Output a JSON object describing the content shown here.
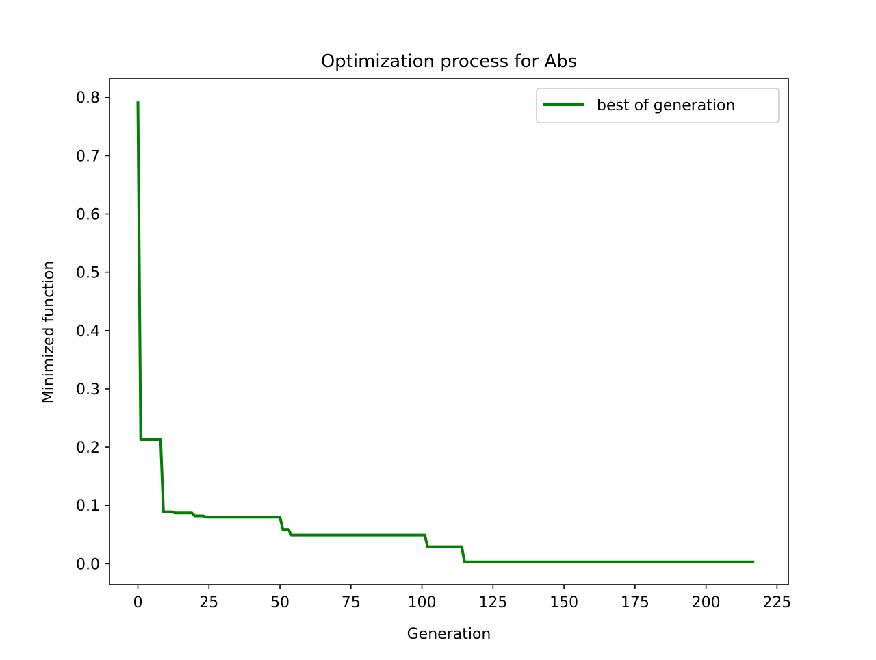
{
  "chart_data": {
    "type": "line",
    "title": "Optimization process for Abs",
    "xlabel": "Generation",
    "ylabel": "Minimized function",
    "xlim": [
      -10,
      229
    ],
    "ylim": [
      -0.036,
      0.832
    ],
    "xticks": [
      0,
      25,
      50,
      75,
      100,
      125,
      150,
      175,
      200,
      225
    ],
    "yticks": [
      0.0,
      0.1,
      0.2,
      0.3,
      0.4,
      0.5,
      0.6,
      0.7,
      0.8
    ],
    "xtick_labels": [
      "0",
      "25",
      "50",
      "75",
      "100",
      "125",
      "150",
      "175",
      "200",
      "225"
    ],
    "ytick_labels": [
      "0.0",
      "0.1",
      "0.2",
      "0.3",
      "0.4",
      "0.5",
      "0.6",
      "0.7",
      "0.8"
    ],
    "grid": false,
    "legend": "top-right",
    "series": [
      {
        "name": "best of generation",
        "color": "#008000",
        "x": [
          0,
          1,
          2,
          3,
          4,
          5,
          6,
          7,
          8,
          9,
          10,
          11,
          12,
          13,
          14,
          15,
          16,
          17,
          18,
          19,
          20,
          21,
          22,
          23,
          24,
          25,
          26,
          27,
          28,
          29,
          30,
          31,
          32,
          33,
          34,
          35,
          36,
          37,
          38,
          39,
          40,
          41,
          42,
          43,
          44,
          45,
          46,
          47,
          48,
          49,
          50,
          51,
          52,
          53,
          54,
          55,
          56,
          57,
          58,
          59,
          60,
          61,
          62,
          63,
          64,
          65,
          66,
          67,
          68,
          69,
          70,
          71,
          72,
          73,
          74,
          75,
          76,
          77,
          78,
          79,
          80,
          81,
          82,
          83,
          84,
          85,
          86,
          87,
          88,
          89,
          90,
          91,
          92,
          93,
          94,
          95,
          96,
          97,
          98,
          99,
          100,
          101,
          102,
          103,
          104,
          105,
          106,
          107,
          108,
          109,
          110,
          111,
          112,
          113,
          114,
          115,
          116,
          117,
          118,
          119,
          120,
          121,
          122,
          123,
          124,
          125,
          126,
          127,
          128,
          129,
          130,
          131,
          132,
          133,
          134,
          135,
          136,
          137,
          138,
          139,
          140,
          141,
          142,
          143,
          144,
          145,
          146,
          147,
          148,
          149,
          150,
          151,
          152,
          153,
          154,
          155,
          156,
          157,
          158,
          159,
          160,
          161,
          162,
          163,
          164,
          165,
          166,
          167,
          168,
          169,
          170,
          171,
          172,
          173,
          174,
          175,
          176,
          177,
          178,
          179,
          180,
          181,
          182,
          183,
          184,
          185,
          186,
          187,
          188,
          189,
          190,
          191,
          192,
          193,
          194,
          195,
          196,
          197,
          198,
          199,
          200,
          201,
          202,
          203,
          204,
          205,
          206,
          207,
          208,
          209,
          210,
          211,
          212,
          213,
          214,
          215,
          216,
          217
        ],
        "y": [
          0.793,
          0.213,
          0.213,
          0.213,
          0.213,
          0.213,
          0.213,
          0.213,
          0.213,
          0.089,
          0.089,
          0.089,
          0.089,
          0.087,
          0.087,
          0.087,
          0.087,
          0.087,
          0.087,
          0.087,
          0.082,
          0.082,
          0.082,
          0.082,
          0.08,
          0.08,
          0.08,
          0.08,
          0.08,
          0.08,
          0.08,
          0.08,
          0.08,
          0.08,
          0.08,
          0.08,
          0.08,
          0.08,
          0.08,
          0.08,
          0.08,
          0.08,
          0.08,
          0.08,
          0.08,
          0.08,
          0.08,
          0.08,
          0.08,
          0.08,
          0.08,
          0.059,
          0.059,
          0.059,
          0.049,
          0.049,
          0.049,
          0.049,
          0.049,
          0.049,
          0.049,
          0.049,
          0.049,
          0.049,
          0.049,
          0.049,
          0.049,
          0.049,
          0.049,
          0.049,
          0.049,
          0.049,
          0.049,
          0.049,
          0.049,
          0.049,
          0.049,
          0.049,
          0.049,
          0.049,
          0.049,
          0.049,
          0.049,
          0.049,
          0.049,
          0.049,
          0.049,
          0.049,
          0.049,
          0.049,
          0.049,
          0.049,
          0.049,
          0.049,
          0.049,
          0.049,
          0.049,
          0.049,
          0.049,
          0.049,
          0.049,
          0.049,
          0.029,
          0.029,
          0.029,
          0.029,
          0.029,
          0.029,
          0.029,
          0.029,
          0.029,
          0.029,
          0.029,
          0.029,
          0.029,
          0.003,
          0.003,
          0.003,
          0.003,
          0.003,
          0.003,
          0.003,
          0.003,
          0.003,
          0.003,
          0.003,
          0.003,
          0.003,
          0.003,
          0.003,
          0.003,
          0.003,
          0.003,
          0.003,
          0.003,
          0.003,
          0.003,
          0.003,
          0.003,
          0.003,
          0.003,
          0.003,
          0.003,
          0.003,
          0.003,
          0.003,
          0.003,
          0.003,
          0.003,
          0.003,
          0.003,
          0.003,
          0.003,
          0.003,
          0.003,
          0.003,
          0.003,
          0.003,
          0.003,
          0.003,
          0.003,
          0.003,
          0.003,
          0.003,
          0.003,
          0.003,
          0.003,
          0.003,
          0.003,
          0.003,
          0.003,
          0.003,
          0.003,
          0.003,
          0.003,
          0.003,
          0.003,
          0.003,
          0.003,
          0.003,
          0.003,
          0.003,
          0.003,
          0.003,
          0.003,
          0.003,
          0.003,
          0.003,
          0.003,
          0.003,
          0.003,
          0.003,
          0.003,
          0.003,
          0.003,
          0.003,
          0.003,
          0.003,
          0.003,
          0.003,
          0.003,
          0.003,
          0.003,
          0.003,
          0.003,
          0.003,
          0.003,
          0.003,
          0.003,
          0.003,
          0.003,
          0.003,
          0.003,
          0.003,
          0.003,
          0.003,
          0.003,
          0.003
        ]
      }
    ]
  }
}
